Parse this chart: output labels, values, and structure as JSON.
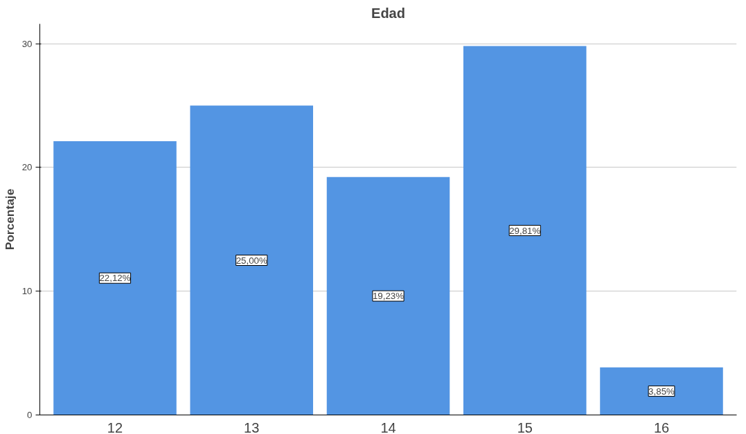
{
  "chart_data": {
    "type": "bar",
    "title": "Edad",
    "ylabel": "Porcentaje",
    "categories": [
      "12",
      "13",
      "14",
      "15",
      "16"
    ],
    "values": [
      22.12,
      25.0,
      19.23,
      29.81,
      3.85
    ],
    "value_labels": [
      "22,12%",
      "25,00%",
      "19,23%",
      "29,81%",
      "3,85%"
    ],
    "color": "#5395e3",
    "ylim": [
      0,
      31.6
    ],
    "yticks": [
      0,
      10,
      20,
      30
    ],
    "grid": "y"
  }
}
